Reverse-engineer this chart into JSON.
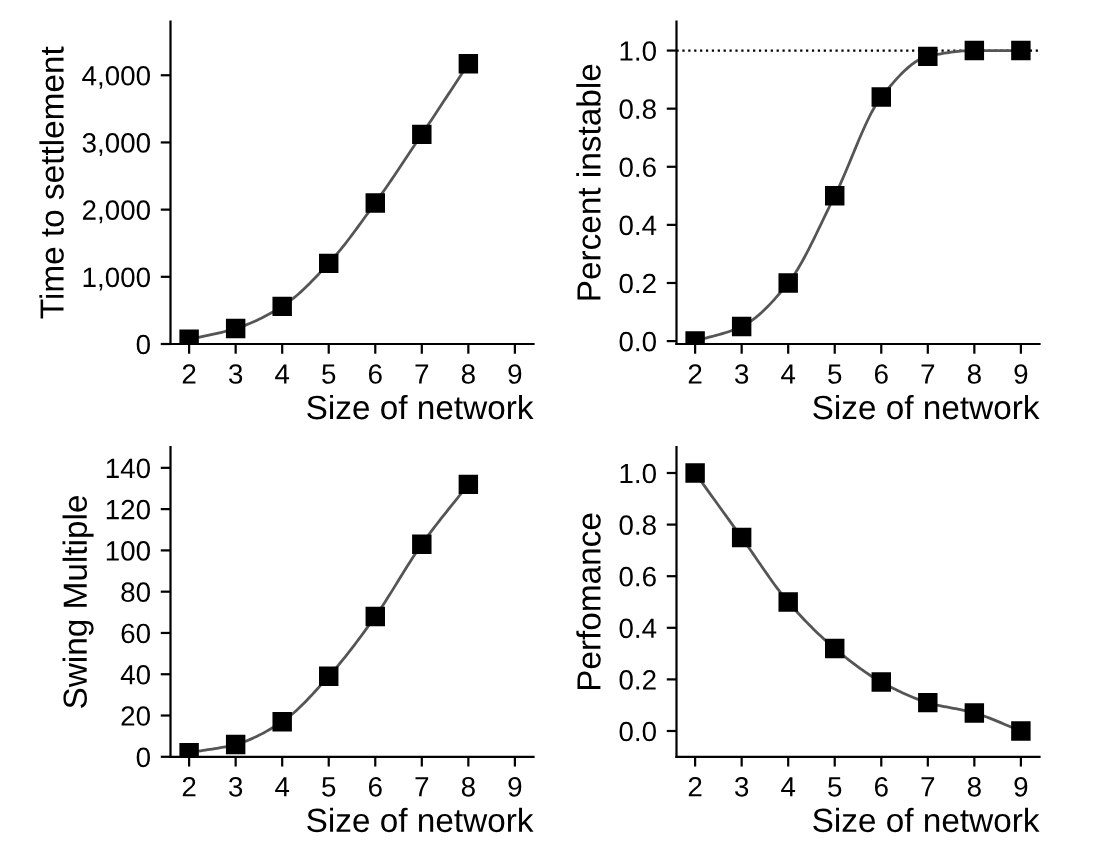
{
  "chart_data": [
    {
      "type": "line",
      "xlabel": "Size of network",
      "ylabel": "Time to settlement",
      "x": [
        2,
        3,
        4,
        5,
        6,
        7,
        8
      ],
      "series": [
        {
          "color": "#000000",
          "values": [
            70,
            230,
            560,
            1200,
            2100,
            3120,
            4170
          ]
        }
      ],
      "xlim": [
        1.6,
        9.4
      ],
      "xticks": [
        2,
        3,
        4,
        5,
        6,
        7,
        8,
        9
      ],
      "ylim": [
        0,
        4800
      ],
      "yticks": [
        0,
        {
          "value": 1000,
          "label": "1,000"
        },
        {
          "value": 2000,
          "label": "2,000"
        },
        {
          "value": 3000,
          "label": "3,000"
        },
        {
          "value": 4000,
          "label": "4,000"
        }
      ],
      "marker": "square",
      "grid": false,
      "legend": false
    },
    {
      "type": "line",
      "xlabel": "Size of network",
      "ylabel": "Percent instable",
      "x": [
        2,
        3,
        4,
        5,
        6,
        7,
        8,
        9
      ],
      "series": [
        {
          "color": "#000000",
          "values": [
            0,
            0.05,
            0.2,
            0.5,
            0.84,
            0.98,
            1.0,
            1.0
          ]
        }
      ],
      "xlim": [
        1.6,
        9.4
      ],
      "xticks": [
        2,
        3,
        4,
        5,
        6,
        7,
        8,
        9
      ],
      "ylim": [
        -0.01,
        1.1
      ],
      "yticks": [
        {
          "value": 0,
          "label": "0.0"
        },
        0.2,
        0.4,
        0.6,
        0.8,
        {
          "value": 1,
          "label": "1.0"
        }
      ],
      "marker": "square",
      "grid": false,
      "legend": false,
      "ref_lines": [
        {
          "axis": "y",
          "value": 1.0,
          "label": null,
          "color": "#000000",
          "line_style": "dotted"
        }
      ]
    },
    {
      "type": "line",
      "xlabel": "Size of network",
      "ylabel": "Swing Multiple",
      "x": [
        2,
        3,
        4,
        5,
        6,
        7,
        8
      ],
      "series": [
        {
          "color": "#000000",
          "values": [
            2,
            6,
            17,
            39,
            68,
            103,
            132
          ]
        }
      ],
      "xlim": [
        1.6,
        9.4
      ],
      "xticks": [
        2,
        3,
        4,
        5,
        6,
        7,
        8,
        9
      ],
      "ylim": [
        0,
        150
      ],
      "yticks": [
        0,
        20,
        40,
        60,
        80,
        100,
        120,
        140
      ],
      "marker": "square",
      "grid": false,
      "legend": false
    },
    {
      "type": "line",
      "xlabel": "Size of network",
      "ylabel": "Perfomance",
      "x": [
        2,
        3,
        4,
        5,
        6,
        7,
        8,
        9
      ],
      "series": [
        {
          "color": "#000000",
          "values": [
            1.0,
            0.75,
            0.5,
            0.32,
            0.19,
            0.11,
            0.07,
            0.0
          ]
        }
      ],
      "xlim": [
        1.6,
        9.4
      ],
      "xticks": [
        2,
        3,
        4,
        5,
        6,
        7,
        8,
        9
      ],
      "ylim": [
        -0.1,
        1.1
      ],
      "yticks": [
        {
          "value": 0,
          "label": "0.0"
        },
        0.2,
        0.4,
        0.6,
        0.8,
        {
          "value": 1,
          "label": "1.0"
        }
      ],
      "marker": "square",
      "grid": false,
      "legend": false
    }
  ]
}
